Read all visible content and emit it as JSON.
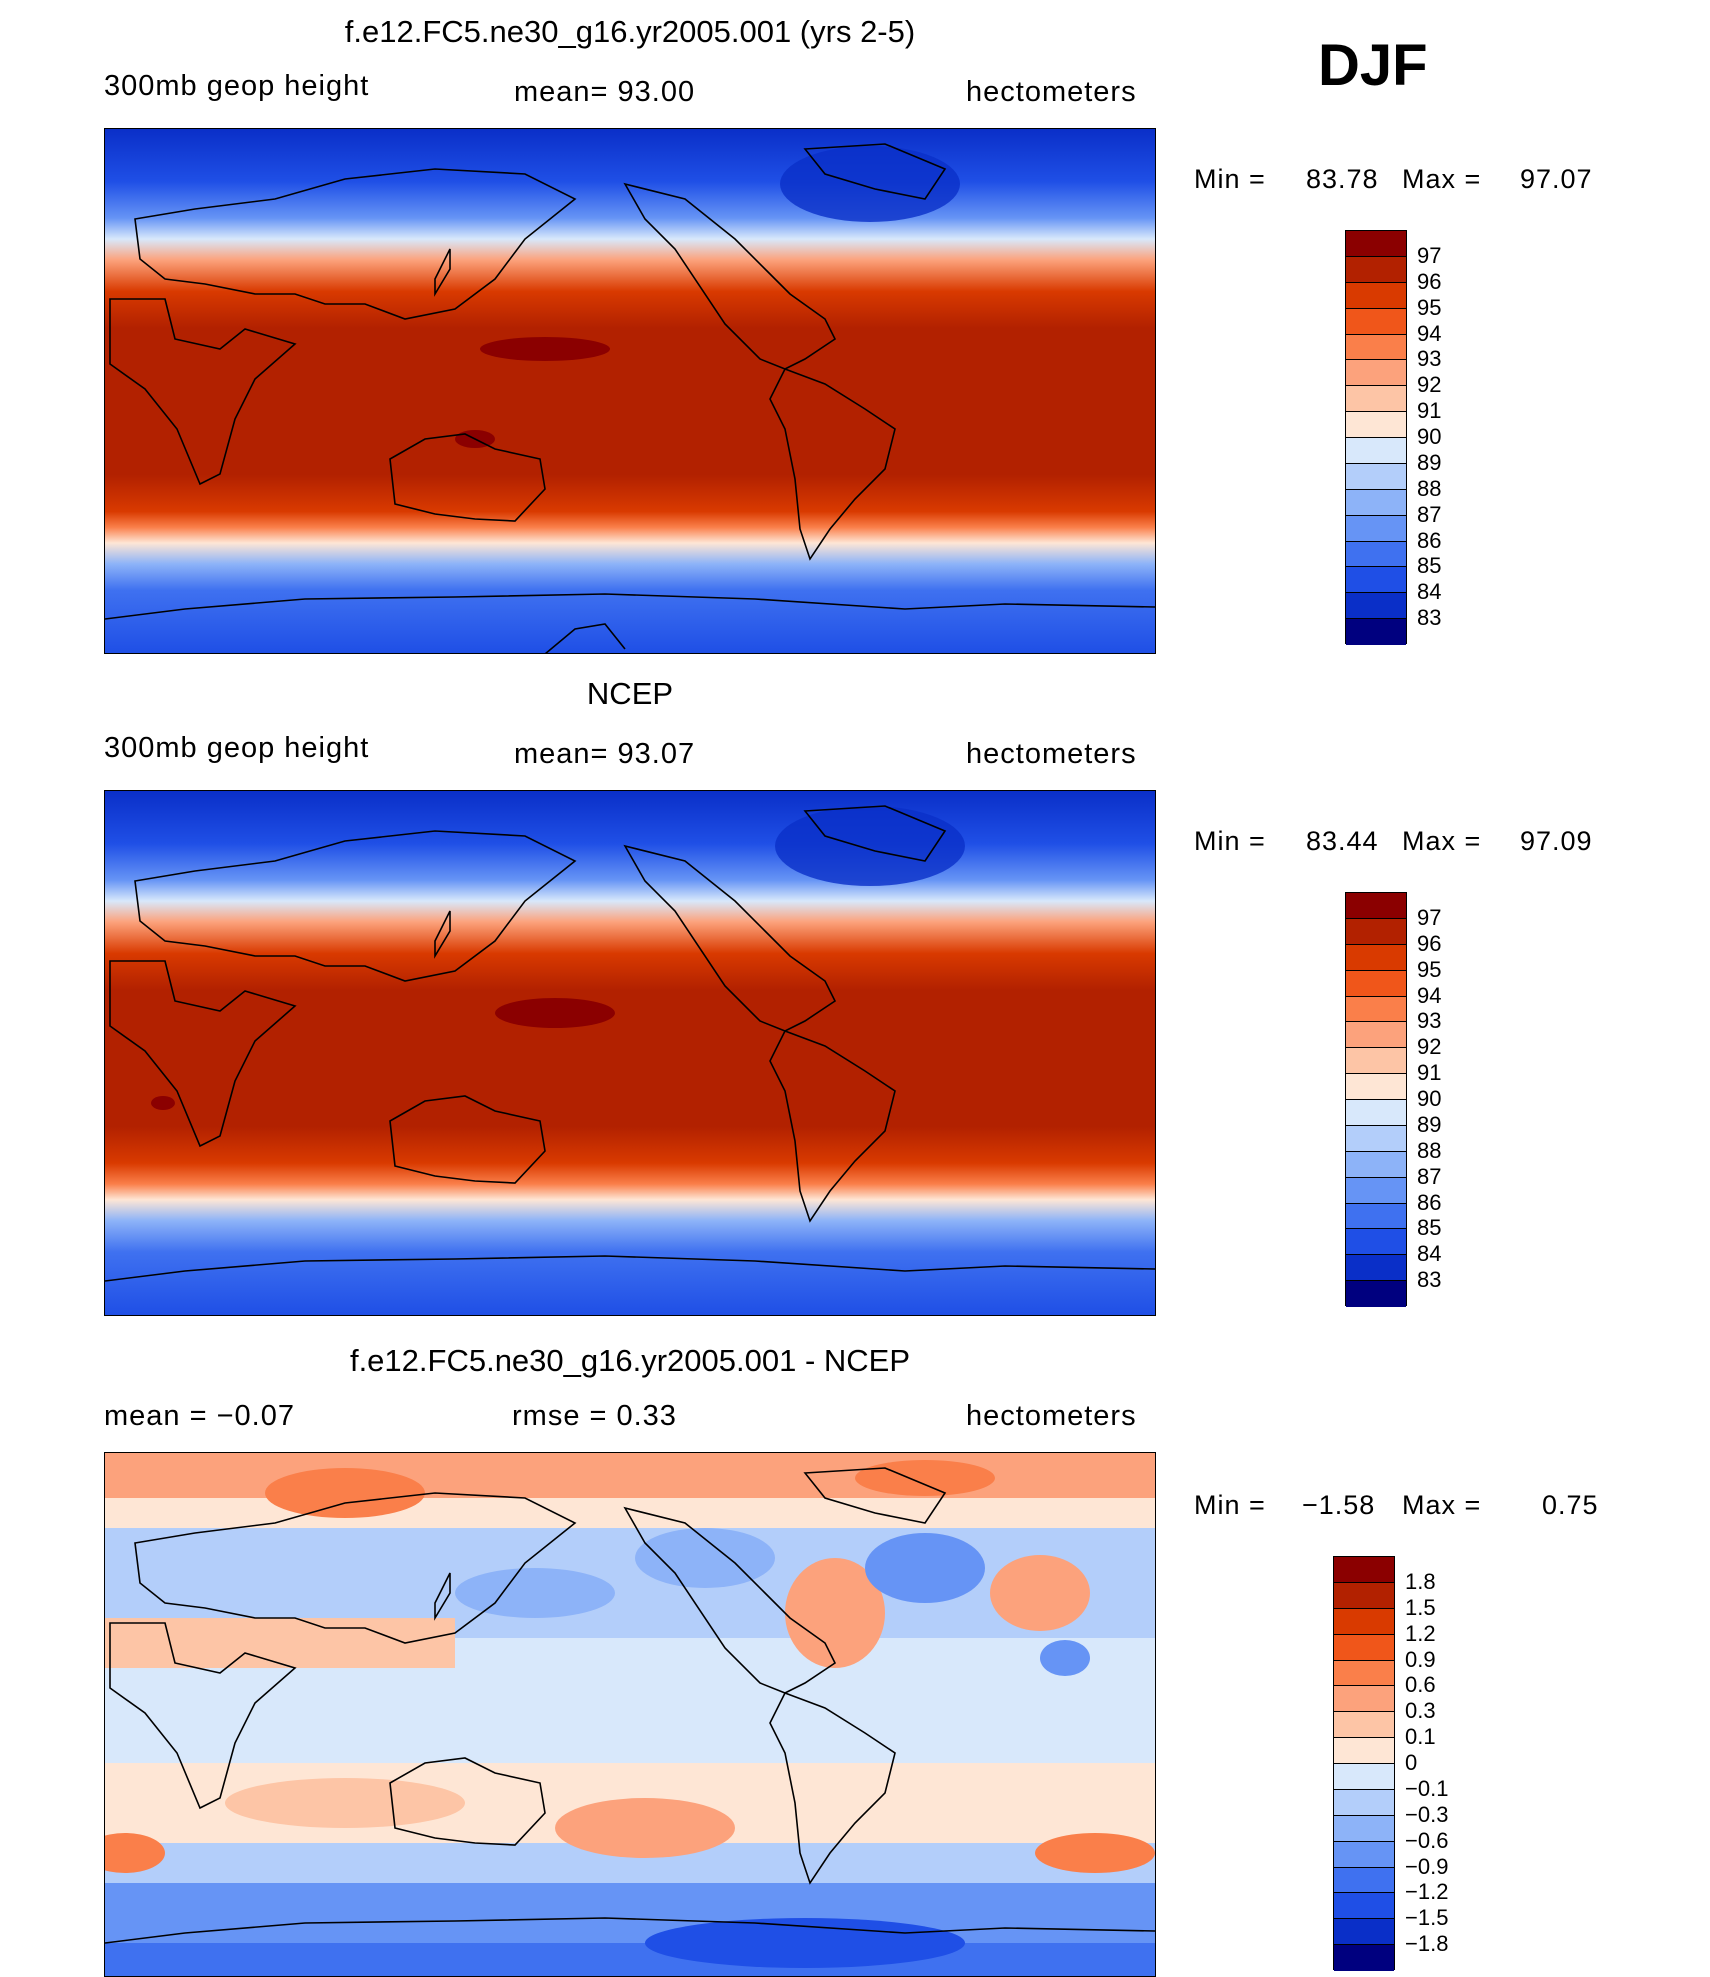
{
  "season": "DJF",
  "panels": [
    {
      "title": "f.e12.FC5.ne30_g16.yr2005.001 (yrs 2-5)",
      "left": "300mb  geop  height",
      "center": "mean=   93.00",
      "right": "hectometers",
      "min": "83.78",
      "max": "97.07",
      "min_label": "Min  =",
      "max_label": "Max  ="
    },
    {
      "title": "NCEP",
      "left": "300mb  geop  height",
      "center": "mean=   93.07",
      "right": "hectometers",
      "min": "83.44",
      "max": "97.09",
      "min_label": "Min  =",
      "max_label": "Max  ="
    },
    {
      "title": "f.e12.FC5.ne30_g16.yr2005.001 - NCEP",
      "left": "mean  =    −0.07",
      "center": "rmse  =     0.33",
      "right": "hectometers",
      "min": "−1.58",
      "max": "0.75",
      "min_label": "Min  =",
      "max_label": "Max  ="
    }
  ],
  "colorbars": {
    "height": {
      "labels": [
        "97",
        "96",
        "95",
        "94",
        "93",
        "92",
        "91",
        "90",
        "89",
        "88",
        "87",
        "86",
        "85",
        "84",
        "83"
      ],
      "colors": [
        "#8b0000",
        "#b22100",
        "#d93a00",
        "#f0561a",
        "#fa7f4a",
        "#fca27c",
        "#fdc5a6",
        "#fee6d5",
        "#d8e8fb",
        "#b3cefa",
        "#8db3f8",
        "#6694f5",
        "#3f71f0",
        "#1f4fe6",
        "#0a2fc8",
        "#00007f"
      ]
    },
    "diff": {
      "labels": [
        "1.8",
        "1.5",
        "1.2",
        "0.9",
        "0.6",
        "0.3",
        "0.1",
        "0",
        "−0.1",
        "−0.3",
        "−0.6",
        "−0.9",
        "−1.2",
        "−1.5",
        "−1.8"
      ],
      "colors": [
        "#8b0000",
        "#b22100",
        "#d93a00",
        "#f0561a",
        "#fa7f4a",
        "#fca27c",
        "#fdc5a6",
        "#fee6d5",
        "#d8e8fb",
        "#b3cefa",
        "#8db3f8",
        "#6694f5",
        "#3f71f0",
        "#1f4fe6",
        "#0a2fc8",
        "#00007f"
      ]
    }
  }
}
